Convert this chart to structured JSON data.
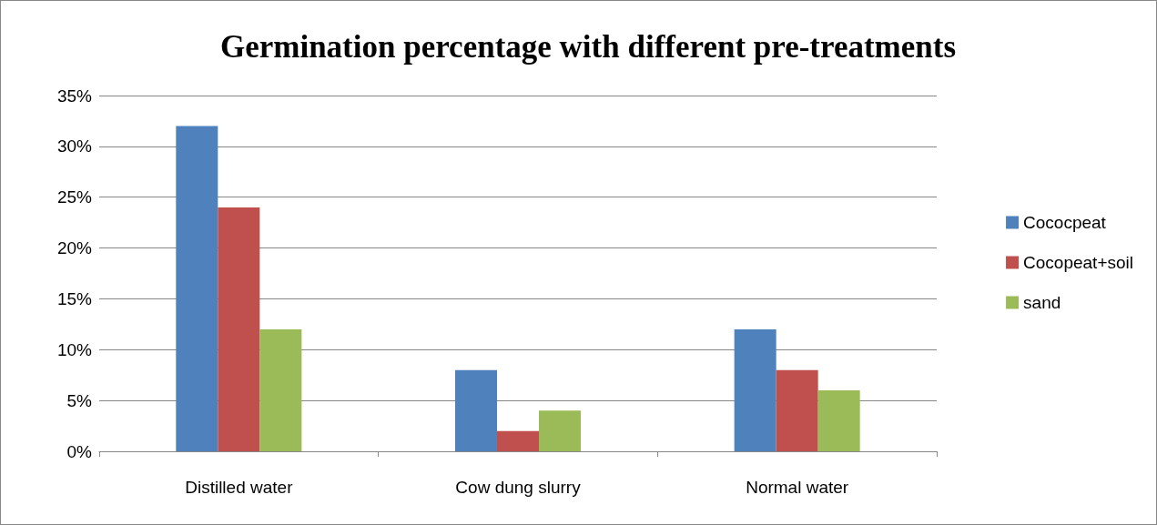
{
  "chart_data": {
    "type": "bar",
    "title": "Germination percentage with different pre-treatments",
    "categories": [
      "Distilled water",
      "Cow dung slurry",
      "Normal water"
    ],
    "series": [
      {
        "name": "Cococpeat",
        "color": "#4f81bd",
        "values": [
          32,
          8,
          12
        ]
      },
      {
        "name": "Cocopeat+soil",
        "color": "#c0504d",
        "values": [
          24,
          2,
          8
        ]
      },
      {
        "name": "sand",
        "color": "#9bbb59",
        "values": [
          12,
          4,
          6
        ]
      }
    ],
    "ylim": [
      0,
      35
    ],
    "yticks": [
      {
        "value": 0,
        "label": "0%"
      },
      {
        "value": 5,
        "label": "5%"
      },
      {
        "value": 10,
        "label": "10%"
      },
      {
        "value": 15,
        "label": "15%"
      },
      {
        "value": 20,
        "label": "20%"
      },
      {
        "value": 25,
        "label": "25%"
      },
      {
        "value": 30,
        "label": "30%"
      },
      {
        "value": 35,
        "label": "35%"
      }
    ],
    "grid": "y",
    "legend": "right"
  }
}
